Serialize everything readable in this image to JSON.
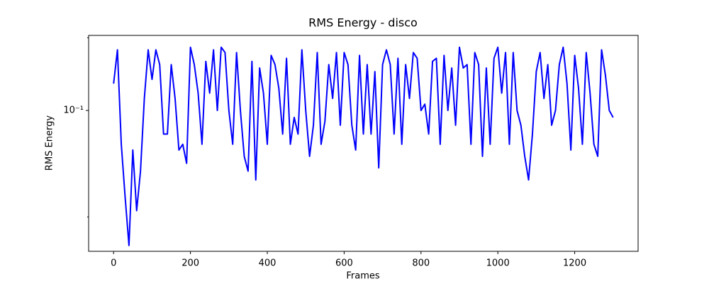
{
  "chart_data": {
    "type": "line",
    "title": "RMS Energy - disco",
    "xlabel": "Frames",
    "ylabel": "RMS Energy",
    "x": [
      0,
      10,
      20,
      30,
      40,
      50,
      60,
      70,
      80,
      90,
      100,
      110,
      120,
      130,
      140,
      150,
      160,
      170,
      180,
      190,
      200,
      210,
      220,
      230,
      240,
      250,
      260,
      270,
      280,
      290,
      300,
      310,
      320,
      330,
      340,
      350,
      360,
      370,
      380,
      390,
      400,
      410,
      420,
      430,
      440,
      450,
      460,
      470,
      480,
      490,
      500,
      510,
      520,
      530,
      540,
      550,
      560,
      570,
      580,
      590,
      600,
      610,
      620,
      630,
      640,
      650,
      660,
      670,
      680,
      690,
      700,
      710,
      720,
      730,
      740,
      750,
      760,
      770,
      780,
      790,
      800,
      810,
      820,
      830,
      840,
      850,
      860,
      870,
      880,
      890,
      900,
      910,
      920,
      930,
      940,
      950,
      960,
      970,
      980,
      990,
      1000,
      1010,
      1020,
      1030,
      1040,
      1050,
      1060,
      1070,
      1080,
      1090,
      1100,
      1110,
      1120,
      1130,
      1140,
      1150,
      1160,
      1170,
      1180,
      1190,
      1200,
      1210,
      1220,
      1230,
      1240,
      1250,
      1260,
      1270,
      1280,
      1290,
      1300
    ],
    "series": [
      {
        "name": "RMS Energy",
        "color": "#0000ff",
        "values": [
          0.15,
          0.25,
          0.06,
          0.027,
          0.013,
          0.055,
          0.022,
          0.04,
          0.12,
          0.25,
          0.16,
          0.25,
          0.2,
          0.07,
          0.07,
          0.2,
          0.12,
          0.055,
          0.06,
          0.045,
          0.26,
          0.2,
          0.13,
          0.06,
          0.21,
          0.13,
          0.25,
          0.1,
          0.26,
          0.24,
          0.1,
          0.06,
          0.24,
          0.1,
          0.05,
          0.04,
          0.21,
          0.035,
          0.19,
          0.13,
          0.06,
          0.23,
          0.2,
          0.14,
          0.07,
          0.22,
          0.06,
          0.09,
          0.07,
          0.25,
          0.1,
          0.05,
          0.08,
          0.24,
          0.06,
          0.085,
          0.2,
          0.12,
          0.24,
          0.08,
          0.24,
          0.2,
          0.08,
          0.055,
          0.23,
          0.07,
          0.2,
          0.07,
          0.18,
          0.042,
          0.2,
          0.25,
          0.2,
          0.07,
          0.22,
          0.06,
          0.2,
          0.12,
          0.24,
          0.22,
          0.1,
          0.11,
          0.07,
          0.21,
          0.22,
          0.06,
          0.23,
          0.1,
          0.19,
          0.08,
          0.26,
          0.19,
          0.2,
          0.06,
          0.24,
          0.2,
          0.05,
          0.19,
          0.06,
          0.22,
          0.26,
          0.13,
          0.24,
          0.06,
          0.24,
          0.1,
          0.08,
          0.05,
          0.035,
          0.07,
          0.18,
          0.24,
          0.12,
          0.2,
          0.08,
          0.1,
          0.2,
          0.26,
          0.15,
          0.055,
          0.23,
          0.14,
          0.06,
          0.24,
          0.13,
          0.06,
          0.05,
          0.25,
          0.17,
          0.1,
          0.09
        ]
      }
    ],
    "xlim": [
      -65,
      1365
    ],
    "xticks": [
      0,
      200,
      400,
      600,
      800,
      1000,
      1200
    ],
    "ylim": [
      0.0119,
      0.311
    ],
    "log_y": true,
    "yticks": [
      {
        "value": 0.1,
        "label": "10⁻¹"
      }
    ],
    "minor_yticks": [
      0.02,
      0.3
    ],
    "grid": false
  }
}
